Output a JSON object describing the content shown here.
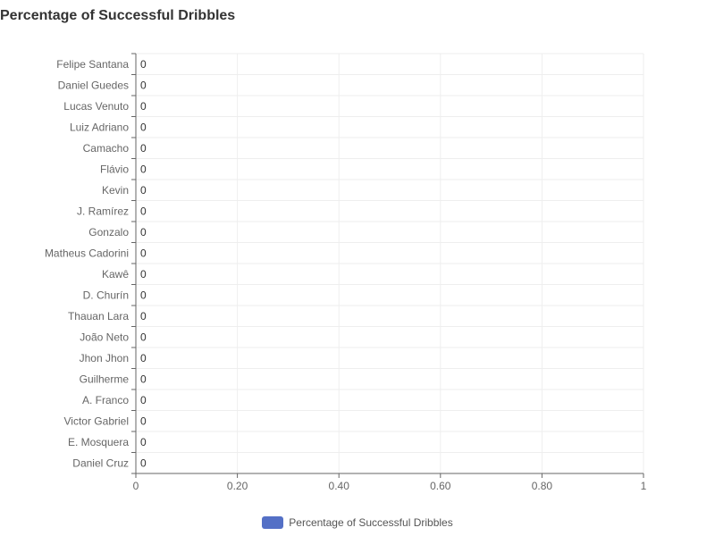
{
  "chart_data": {
    "type": "bar",
    "orientation": "horizontal",
    "title": "Percentage of Successful Dribbles",
    "categories": [
      "Felipe Santana",
      "Daniel Guedes",
      "Lucas Venuto",
      "Luiz Adriano",
      "Camacho",
      "Flávio",
      "Kevin",
      "J. Ramírez",
      "Gonzalo",
      "Matheus Cadorini",
      "Kawê",
      "D. Churín",
      "Thauan Lara",
      "João Neto",
      "Jhon Jhon",
      "Guilherme",
      "A. Franco",
      "Victor Gabriel",
      "E. Mosquera",
      "Daniel Cruz"
    ],
    "series": [
      {
        "name": "Percentage of Successful Dribbles",
        "values": [
          0,
          0,
          0,
          0,
          0,
          0,
          0,
          0,
          0,
          0,
          0,
          0,
          0,
          0,
          0,
          0,
          0,
          0,
          0,
          0
        ]
      }
    ],
    "data_labels": [
      "0",
      "0",
      "0",
      "0",
      "0",
      "0",
      "0",
      "0",
      "0",
      "0",
      "0",
      "0",
      "0",
      "0",
      "0",
      "0",
      "0",
      "0",
      "0",
      "0"
    ],
    "xlim": [
      0,
      1
    ],
    "x_ticks": [
      0,
      0.2,
      0.4,
      0.6,
      0.8,
      1
    ],
    "x_tick_labels": [
      "0",
      "0.20",
      "0.40",
      "0.60",
      "0.80",
      "1"
    ],
    "grid": true,
    "legend": "bottom-center",
    "colors": {
      "bar": "#5470c6",
      "grid": "#eeeeee",
      "axis": "#666666",
      "text": "#666666"
    }
  }
}
